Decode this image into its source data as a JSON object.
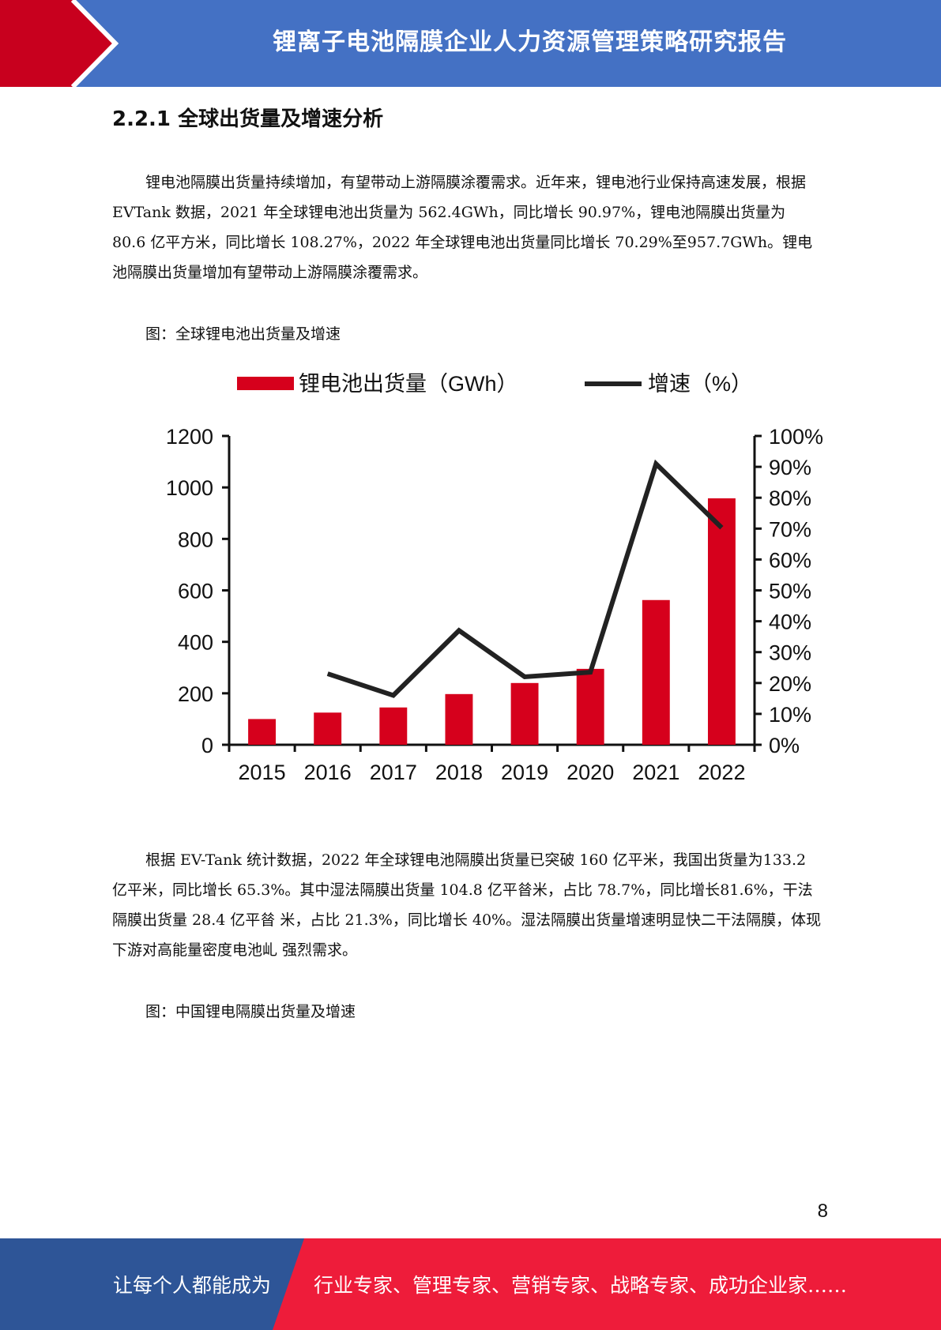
{
  "header": {
    "title": "锂离子电池隔膜企业人力资源管理策略研究报告",
    "accent_red": "#c8001e",
    "accent_blue": "#4471c4"
  },
  "section": {
    "heading": "2.2.1 全球出货量及增速分析"
  },
  "paragraphs": {
    "p1": "锂电池隔膜出货量持续增加，有望带动上游隔膜涂覆需求。近年来，锂电池行业保持高速发展，根据 EVTank 数据，2021 年全球锂电池出货量为 562.4GWh，同比增长 90.97%，锂电池隔膜出货量为 80.6 亿平方米，同比增长 108.27%，2022 年全球锂电池出货量同比增长 70.29%至957.7GWh。锂电池隔膜出货量增加有望带动上游隔膜涂覆需求。",
    "p2": "根据 EV-Tank 统计数据，2022 年全球锂电池隔膜出货量已突破 160 亿平米，我国出货量为133.2 亿平米，同比增长 65.3%。其中湿法隔膜出货量 104.8 亿平㫺米，占比 78.7%，同比增长81.6%，干法隔膜出货量 28.4 亿平㫺 米，占比 21.3%，同比增长 40%。湿法隔膜出货量增速明显快二干法隔膜，体现下游对高能量密度电池乢 强烈需求。"
  },
  "captions": {
    "fig1": "图：全球锂电池出货量及增速",
    "fig2": "图：中国锂电隔膜出货量及增速"
  },
  "chart_data": {
    "type": "bar",
    "categories": [
      "2015",
      "2016",
      "2017",
      "2018",
      "2019",
      "2020",
      "2021",
      "2022"
    ],
    "series": [
      {
        "name": "锂电池出货量（GWh）",
        "type": "bar",
        "axis": "left",
        "color": "#d6001c",
        "values": [
          100,
          125,
          145,
          197,
          240,
          295,
          562.4,
          957.7
        ]
      },
      {
        "name": "增速（%）",
        "type": "line",
        "axis": "right",
        "color": "#222222",
        "values": [
          null,
          23,
          16,
          37,
          22,
          23.5,
          90.97,
          70.29
        ]
      }
    ],
    "ylim": [
      0,
      1200
    ],
    "yticks": [
      "0",
      "200",
      "400",
      "600",
      "800",
      "1000",
      "1200"
    ],
    "y2lim": [
      0,
      100
    ],
    "y2ticks": [
      "0%",
      "10%",
      "20%",
      "30%",
      "40%",
      "50%",
      "60%",
      "70%",
      "80%",
      "90%",
      "100%"
    ],
    "legend": "top",
    "grid": false
  },
  "page_number": "8",
  "footer": {
    "left": "让每个人都能成为",
    "right": "行业专家、管理专家、营销专家、战略专家、成功企业家……",
    "red": "#ee1c3a",
    "blue": "#2e5597"
  }
}
